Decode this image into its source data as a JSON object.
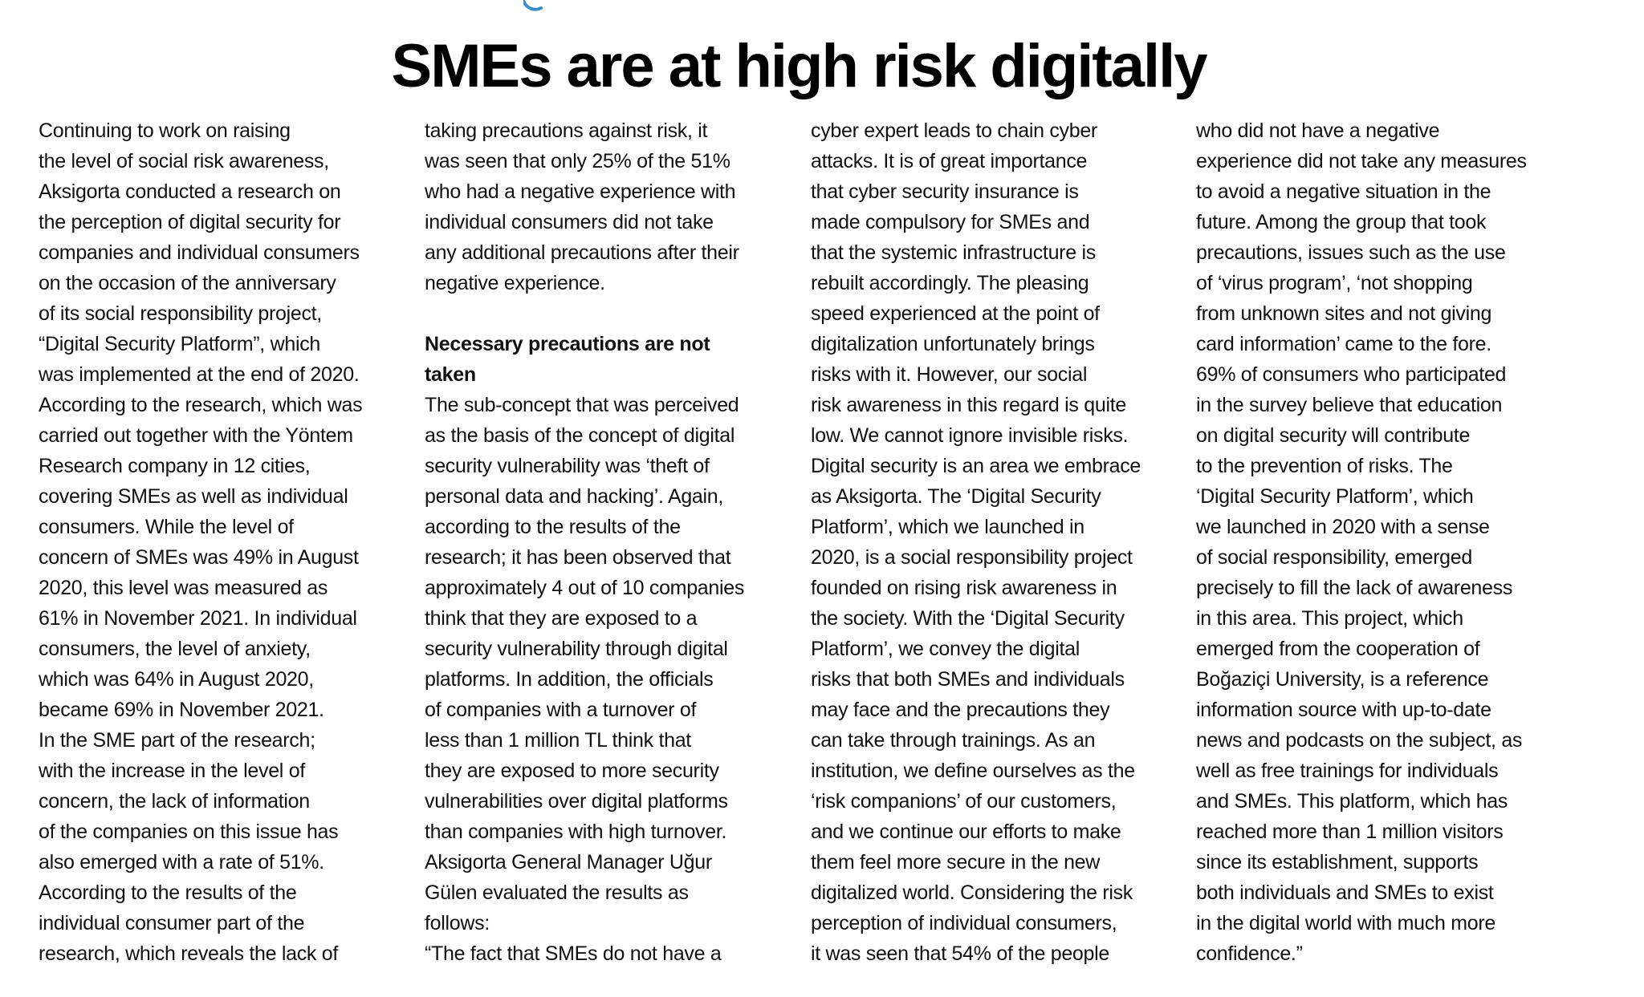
{
  "logo": {
    "name": "partial-brand-logo",
    "color": "#3a8fc9"
  },
  "title": "SMEs are at high risk digitally",
  "columns": [
    {
      "lines": [
        {
          "t": "Continuing to work on raising"
        },
        {
          "t": "the level of social risk awareness,"
        },
        {
          "t": "Aksigorta conducted a research on"
        },
        {
          "t": "the perception of digital security for"
        },
        {
          "t": "companies and individual consumers"
        },
        {
          "t": "on the occasion of the anniversary"
        },
        {
          "t": "of its social responsibility project,"
        },
        {
          "t": "“Digital Security Platform”, which"
        },
        {
          "t": "was implemented at the end of 2020."
        },
        {
          "t": "According to the research, which was"
        },
        {
          "t": "carried out together with the Yöntem"
        },
        {
          "t": "Research company in 12 cities,"
        },
        {
          "t": "covering SMEs as well as individual"
        },
        {
          "t": "consumers. While the level of"
        },
        {
          "t": "concern of SMEs was 49% in August"
        },
        {
          "t": "2020, this level was measured as"
        },
        {
          "t": "61% in November 2021. In individual"
        },
        {
          "t": "consumers, the level of anxiety,"
        },
        {
          "t": "which was 64% in August 2020,"
        },
        {
          "t": "became 69% in November 2021."
        },
        {
          "t": "In the SME part of the research;"
        },
        {
          "t": "with the increase in the level of"
        },
        {
          "t": "concern, the lack of information"
        },
        {
          "t": "of the companies on this issue has"
        },
        {
          "t": "also emerged with a rate of 51%."
        },
        {
          "t": "According to the results of the"
        },
        {
          "t": "individual consumer part of the"
        },
        {
          "t": "research, which reveals the lack of"
        }
      ]
    },
    {
      "lines": [
        {
          "t": "taking precautions against risk, it"
        },
        {
          "t": "was seen that only 25% of the 51%"
        },
        {
          "t": "who had a negative experience with"
        },
        {
          "t": "individual consumers did not take"
        },
        {
          "t": "any additional precautions after their"
        },
        {
          "t": "negative experience."
        },
        {
          "t": ""
        },
        {
          "t": "Necessary precautions are not",
          "b": true
        },
        {
          "t": "taken",
          "b": true
        },
        {
          "t": "The sub-concept that was perceived"
        },
        {
          "t": "as the basis of the concept of digital"
        },
        {
          "t": "security vulnerability was ‘theft of"
        },
        {
          "t": "personal data and hacking’. Again,"
        },
        {
          "t": "according to the results of the"
        },
        {
          "t": "research; it has been observed that"
        },
        {
          "t": "approximately 4 out of 10 companies"
        },
        {
          "t": "think that they are exposed to a"
        },
        {
          "t": "security vulnerability through digital"
        },
        {
          "t": "platforms. In addition, the officials"
        },
        {
          "t": "of companies with a turnover of"
        },
        {
          "t": "less than 1 million TL think that"
        },
        {
          "t": "they are exposed to more security"
        },
        {
          "t": "vulnerabilities over digital platforms"
        },
        {
          "t": "than companies with high turnover."
        },
        {
          "t": "Aksigorta General Manager Uğur"
        },
        {
          "t": "Gülen evaluated the results as"
        },
        {
          "t": "follows:"
        },
        {
          "t": "“The fact that SMEs do not have a"
        }
      ]
    },
    {
      "lines": [
        {
          "t": "cyber expert leads to chain cyber"
        },
        {
          "t": "attacks. It is of great importance"
        },
        {
          "t": "that cyber security insurance is"
        },
        {
          "t": "made compulsory for SMEs and"
        },
        {
          "t": "that the systemic infrastructure is"
        },
        {
          "t": "rebuilt accordingly. The pleasing"
        },
        {
          "t": "speed experienced at the point of"
        },
        {
          "t": "digitalization unfortunately brings"
        },
        {
          "t": "risks with it. However, our social"
        },
        {
          "t": "risk awareness in this regard is quite"
        },
        {
          "t": "low. We cannot ignore invisible risks."
        },
        {
          "t": "Digital security is an area we embrace"
        },
        {
          "t": "as Aksigorta. The ‘Digital Security"
        },
        {
          "t": "Platform’, which we launched in"
        },
        {
          "t": "2020, is a social responsibility project"
        },
        {
          "t": "founded on rising risk awareness in"
        },
        {
          "t": "the society. With the ‘Digital Security"
        },
        {
          "t": "Platform’, we convey the digital"
        },
        {
          "t": "risks that both SMEs and individuals"
        },
        {
          "t": "may face and the precautions they"
        },
        {
          "t": "can take through trainings. As an"
        },
        {
          "t": "institution, we define ourselves as the"
        },
        {
          "t": "‘risk companions’ of our customers,"
        },
        {
          "t": "and we continue our efforts to make"
        },
        {
          "t": "them feel more secure in the new"
        },
        {
          "t": "digitalized world. Considering the risk"
        },
        {
          "t": "perception of individual consumers,"
        },
        {
          "t": "it was seen that 54% of the people"
        }
      ]
    },
    {
      "lines": [
        {
          "t": "who did not have a negative"
        },
        {
          "t": "experience did not take any measures"
        },
        {
          "t": "to avoid a negative situation in the"
        },
        {
          "t": "future. Among the group that took"
        },
        {
          "t": "precautions, issues such as the use"
        },
        {
          "t": "of ‘virus program’, ‘not shopping"
        },
        {
          "t": "from unknown sites and not giving"
        },
        {
          "t": "card information’ came to the fore."
        },
        {
          "t": "69% of consumers who participated"
        },
        {
          "t": "in the survey believe that education"
        },
        {
          "t": "on digital security will contribute"
        },
        {
          "t": "to the prevention of risks. The"
        },
        {
          "t": "‘Digital Security Platform’, which"
        },
        {
          "t": "we launched in 2020 with a sense"
        },
        {
          "t": "of social responsibility, emerged"
        },
        {
          "t": "precisely to fill the lack of awareness"
        },
        {
          "t": "in this area. This project, which"
        },
        {
          "t": "emerged from the cooperation of"
        },
        {
          "t": "Boğaziçi University, is a reference"
        },
        {
          "t": "information source with up-to-date"
        },
        {
          "t": "news and podcasts on the subject, as"
        },
        {
          "t": "well as free trainings for individuals"
        },
        {
          "t": "and SMEs. This platform, which has"
        },
        {
          "t": "reached more than 1 million visitors"
        },
        {
          "t": "since its establishment, supports"
        },
        {
          "t": "both individuals and SMEs to exist"
        },
        {
          "t": "in the digital world with much more"
        },
        {
          "t": "confidence.”"
        }
      ]
    }
  ]
}
